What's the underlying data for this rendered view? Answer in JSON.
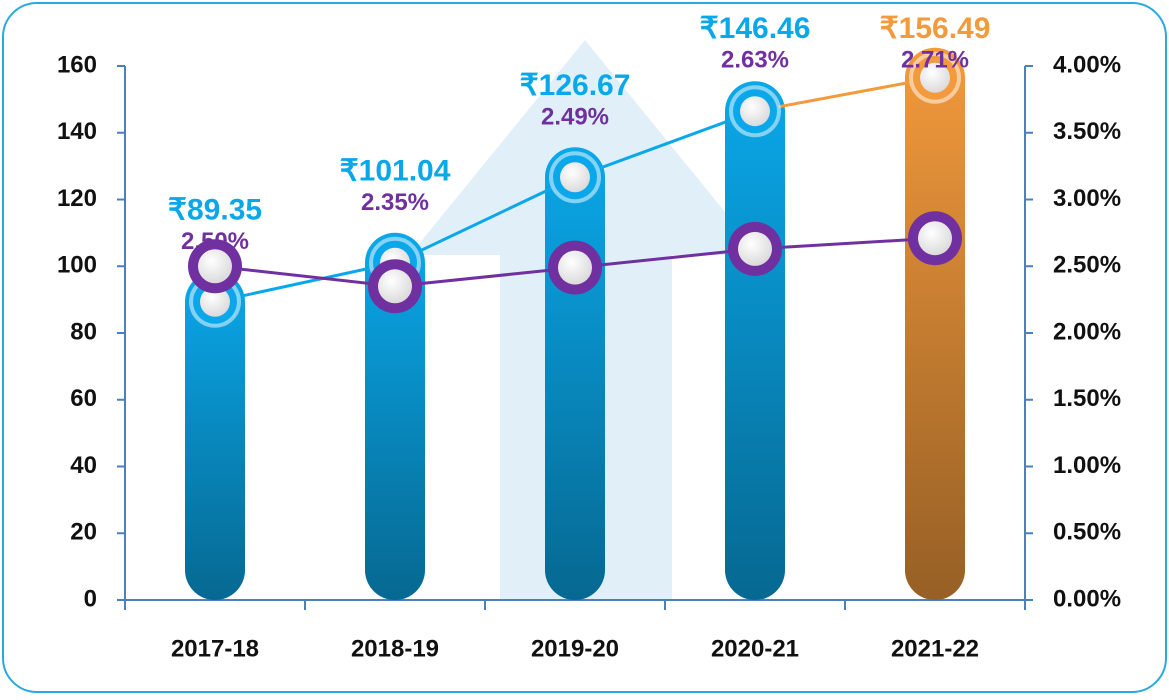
{
  "chart_data": {
    "type": "bar",
    "categories": [
      "2017-18",
      "2018-19",
      "2019-20",
      "2020-21",
      "2021-22"
    ],
    "series": [
      {
        "values": [
          89.35,
          101.04,
          126.67,
          146.46,
          156.49
        ],
        "value_labels": [
          "₹89.35",
          "₹101.04",
          "₹126.67",
          "₹146.46",
          "₹156.49"
        ],
        "colors": [
          "#0aa8ea",
          "#0aa8ea",
          "#0aa8ea",
          "#0aa8ea",
          "#f39a3c"
        ]
      },
      {
        "type": "line",
        "axis": "y2",
        "color": "#7030a0",
        "values": [
          2.5,
          2.35,
          2.49,
          2.63,
          2.71
        ],
        "value_labels": [
          "2.50%",
          "2.35%",
          "2.49%",
          "2.63%",
          "2.71%"
        ]
      }
    ],
    "ylim": [
      0,
      160
    ],
    "yticks": [
      0,
      20,
      40,
      60,
      80,
      100,
      120,
      140,
      160
    ],
    "y2lim": [
      0,
      4
    ],
    "y2ticks": [
      {
        "value": 0,
        "label": "0.00%"
      },
      {
        "value": 0.5,
        "label": "0.50%"
      },
      {
        "value": 1,
        "label": "1.00%"
      },
      {
        "value": 1.5,
        "label": "1.50%"
      },
      {
        "value": 2,
        "label": "2.00%"
      },
      {
        "value": 2.5,
        "label": "2.50%"
      },
      {
        "value": 3,
        "label": "3.00%"
      },
      {
        "value": 3.5,
        "label": "3.50%"
      },
      {
        "value": 4,
        "label": "4.00%"
      }
    ],
    "grid": false
  }
}
